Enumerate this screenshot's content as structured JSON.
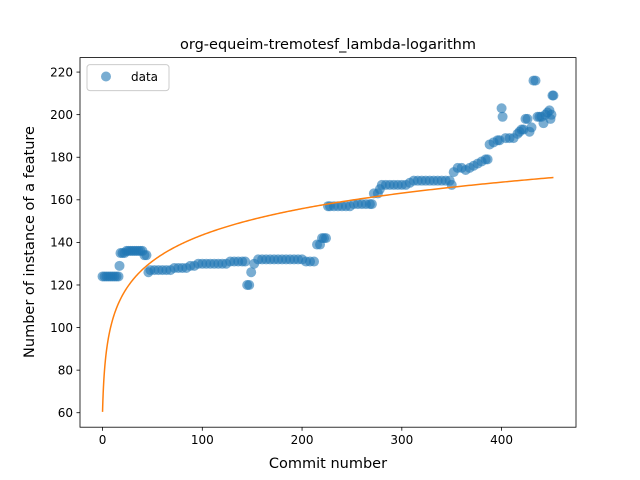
{
  "chart_data": {
    "type": "scatter",
    "title": "org-equeim-tremotesf_lambda-logarithm",
    "xlabel": "Commit number",
    "ylabel": "Number of instance of a feature",
    "xlim": [
      -22.6,
      474.6
    ],
    "ylim": [
      53.2,
      226.8
    ],
    "xticks": [
      0,
      100,
      200,
      300,
      400
    ],
    "yticks": [
      60,
      80,
      100,
      120,
      140,
      160,
      180,
      200,
      220
    ],
    "grid": false,
    "legend": {
      "placement": "top-left",
      "entries": [
        "data"
      ]
    },
    "colors": {
      "data": "#1f77b4",
      "fit": "#ff7f0e"
    },
    "series": [
      {
        "name": "data",
        "kind": "scatter",
        "points": [
          [
            0,
            124
          ],
          [
            2,
            124
          ],
          [
            4,
            124
          ],
          [
            6,
            124
          ],
          [
            8,
            124
          ],
          [
            10,
            124
          ],
          [
            12,
            124
          ],
          [
            14,
            124
          ],
          [
            16,
            124
          ],
          [
            17,
            129
          ],
          [
            18,
            135
          ],
          [
            20,
            135
          ],
          [
            22,
            135
          ],
          [
            24,
            136
          ],
          [
            26,
            136
          ],
          [
            28,
            136
          ],
          [
            30,
            136
          ],
          [
            32,
            136
          ],
          [
            34,
            136
          ],
          [
            36,
            136
          ],
          [
            38,
            136
          ],
          [
            40,
            136
          ],
          [
            42,
            134
          ],
          [
            44,
            134
          ],
          [
            46,
            126
          ],
          [
            48,
            127
          ],
          [
            52,
            127
          ],
          [
            56,
            127
          ],
          [
            60,
            127
          ],
          [
            64,
            127
          ],
          [
            68,
            127
          ],
          [
            72,
            128
          ],
          [
            76,
            128
          ],
          [
            80,
            128
          ],
          [
            84,
            128
          ],
          [
            88,
            129
          ],
          [
            92,
            129
          ],
          [
            96,
            130
          ],
          [
            100,
            130
          ],
          [
            104,
            130
          ],
          [
            108,
            130
          ],
          [
            112,
            130
          ],
          [
            116,
            130
          ],
          [
            120,
            130
          ],
          [
            124,
            130
          ],
          [
            128,
            131
          ],
          [
            132,
            131
          ],
          [
            136,
            131
          ],
          [
            140,
            131
          ],
          [
            143,
            131
          ],
          [
            145,
            120
          ],
          [
            147,
            120
          ],
          [
            149,
            126
          ],
          [
            152,
            130
          ],
          [
            156,
            132
          ],
          [
            160,
            132
          ],
          [
            164,
            132
          ],
          [
            168,
            132
          ],
          [
            172,
            132
          ],
          [
            176,
            132
          ],
          [
            180,
            132
          ],
          [
            184,
            132
          ],
          [
            188,
            132
          ],
          [
            192,
            132
          ],
          [
            196,
            132
          ],
          [
            200,
            132
          ],
          [
            204,
            131
          ],
          [
            208,
            131
          ],
          [
            212,
            131
          ],
          [
            215,
            139
          ],
          [
            218,
            139
          ],
          [
            220,
            142
          ],
          [
            222,
            142
          ],
          [
            224,
            142
          ],
          [
            226,
            157
          ],
          [
            228,
            157
          ],
          [
            232,
            157
          ],
          [
            236,
            157
          ],
          [
            240,
            157
          ],
          [
            244,
            157
          ],
          [
            248,
            157
          ],
          [
            252,
            158
          ],
          [
            256,
            158
          ],
          [
            260,
            158
          ],
          [
            264,
            158
          ],
          [
            268,
            158
          ],
          [
            270,
            158
          ],
          [
            272,
            163
          ],
          [
            276,
            163
          ],
          [
            278,
            165
          ],
          [
            280,
            167
          ],
          [
            284,
            167
          ],
          [
            288,
            167
          ],
          [
            292,
            167
          ],
          [
            296,
            167
          ],
          [
            300,
            167
          ],
          [
            304,
            167
          ],
          [
            308,
            168
          ],
          [
            312,
            169
          ],
          [
            316,
            169
          ],
          [
            320,
            169
          ],
          [
            324,
            169
          ],
          [
            328,
            169
          ],
          [
            332,
            169
          ],
          [
            336,
            169
          ],
          [
            340,
            169
          ],
          [
            344,
            169
          ],
          [
            348,
            169
          ],
          [
            350,
            167
          ],
          [
            352,
            173
          ],
          [
            356,
            175
          ],
          [
            360,
            175
          ],
          [
            364,
            174
          ],
          [
            368,
            175
          ],
          [
            372,
            176
          ],
          [
            376,
            177
          ],
          [
            380,
            178
          ],
          [
            384,
            179
          ],
          [
            386,
            179
          ],
          [
            388,
            186
          ],
          [
            392,
            187
          ],
          [
            396,
            188
          ],
          [
            398,
            188
          ],
          [
            400,
            203
          ],
          [
            401,
            199
          ],
          [
            404,
            189
          ],
          [
            408,
            189
          ],
          [
            412,
            189
          ],
          [
            416,
            191
          ],
          [
            418,
            192
          ],
          [
            420,
            193
          ],
          [
            422,
            193
          ],
          [
            424,
            198
          ],
          [
            426,
            198
          ],
          [
            428,
            192
          ],
          [
            430,
            194
          ],
          [
            432,
            216
          ],
          [
            434,
            216
          ],
          [
            436,
            199
          ],
          [
            438,
            199
          ],
          [
            440,
            199
          ],
          [
            442,
            196
          ],
          [
            444,
            200
          ],
          [
            446,
            201
          ],
          [
            448,
            202
          ],
          [
            449,
            198
          ],
          [
            450,
            200
          ],
          [
            451,
            209
          ],
          [
            452,
            209
          ]
        ]
      },
      {
        "name": "",
        "kind": "line",
        "equation": {
          "a": 60.4,
          "b": 18.0,
          "form": "y = a + b*ln(x + 1)"
        },
        "xrange": [
          0,
          452
        ]
      }
    ]
  }
}
